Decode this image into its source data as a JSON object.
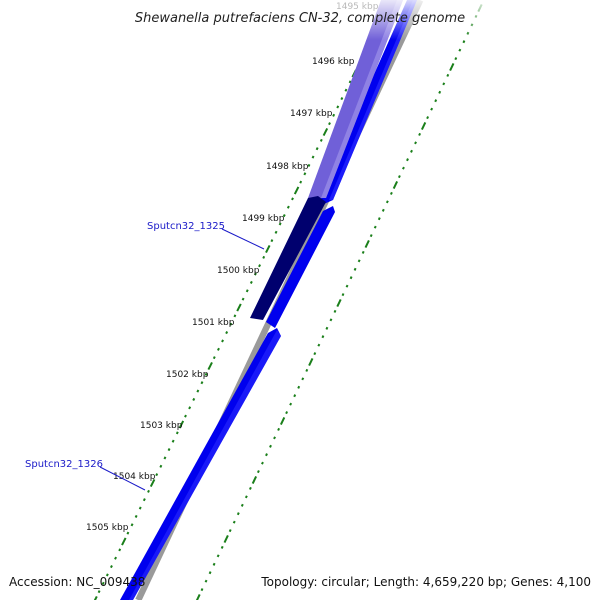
{
  "title": "Shewanella putrefaciens CN-32, complete genome",
  "ticks": [
    {
      "label": "1495 kbp",
      "faded": true
    },
    {
      "label": "1496 kbp"
    },
    {
      "label": "1497 kbp"
    },
    {
      "label": "1498 kbp"
    },
    {
      "label": "1499 kbp"
    },
    {
      "label": "1500 kbp"
    },
    {
      "label": "1501 kbp"
    },
    {
      "label": "1502 kbp"
    },
    {
      "label": "1503 kbp"
    },
    {
      "label": "1504 kbp"
    },
    {
      "label": "1505 kbp"
    }
  ],
  "genes": [
    {
      "name": "Sputcn32_1325",
      "highlighted": true
    },
    {
      "name": "Sputcn32_1326"
    }
  ],
  "footer": {
    "accession": "Accession: NC_009438",
    "summary": "Topology: circular; Length: 4,659,220 bp; Genes: 4,100"
  },
  "colors": {
    "cds": "#0000ee",
    "cds_faded": "#7060d8",
    "cds_selected": "#00006e",
    "backbone": "#8a8a8a",
    "tick": "#1a7f1a",
    "label": "#1a1ac8"
  }
}
